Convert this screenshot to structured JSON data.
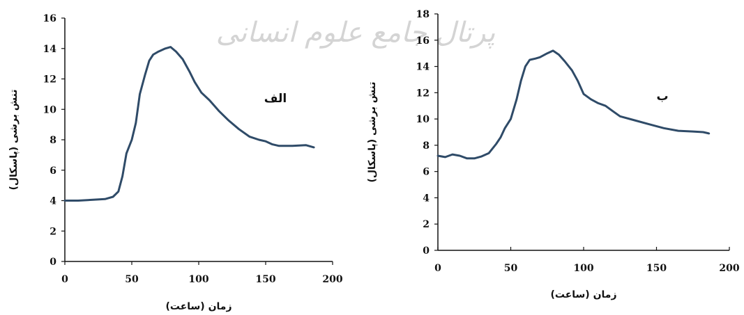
{
  "watermark": "پرتال جامع علوم انسانی",
  "chart_data": [
    {
      "type": "line",
      "panel_label": "الف",
      "xlabel": "زمان (ساعت)",
      "ylabel": "تنش برشی (پاسکال)",
      "xlim": [
        0,
        200
      ],
      "ylim": [
        0,
        16
      ],
      "x_ticks": [
        "0",
        "50",
        "100",
        "150",
        "200"
      ],
      "y_ticks": [
        "0",
        "2",
        "4",
        "6",
        "8",
        "10",
        "12",
        "14",
        "16"
      ],
      "color": "#2f4b68",
      "series": [
        {
          "points": [
            [
              0,
              4.0
            ],
            [
              10,
              4.0
            ],
            [
              20,
              4.05
            ],
            [
              30,
              4.1
            ],
            [
              36,
              4.25
            ],
            [
              40,
              4.6
            ],
            [
              43,
              5.6
            ],
            [
              46,
              7.1
            ],
            [
              50,
              8.0
            ],
            [
              53,
              9.1
            ],
            [
              56,
              11.0
            ],
            [
              60,
              12.3
            ],
            [
              63,
              13.2
            ],
            [
              66,
              13.6
            ],
            [
              70,
              13.8
            ],
            [
              75,
              14.0
            ],
            [
              79,
              14.1
            ],
            [
              83,
              13.8
            ],
            [
              88,
              13.3
            ],
            [
              93,
              12.5
            ],
            [
              97,
              11.8
            ],
            [
              102,
              11.1
            ],
            [
              108,
              10.6
            ],
            [
              115,
              9.9
            ],
            [
              122,
              9.3
            ],
            [
              130,
              8.7
            ],
            [
              138,
              8.2
            ],
            [
              145,
              8.0
            ],
            [
              150,
              7.9
            ],
            [
              155,
              7.7
            ],
            [
              160,
              7.6
            ],
            [
              170,
              7.6
            ],
            [
              180,
              7.65
            ],
            [
              186,
              7.5
            ]
          ]
        }
      ]
    },
    {
      "type": "line",
      "panel_label": "ب",
      "xlabel": "زمان (ساعت)",
      "ylabel": "تنش برشی (پاسکال)",
      "xlim": [
        0,
        200
      ],
      "ylim": [
        0,
        18
      ],
      "x_ticks": [
        "0",
        "50",
        "100",
        "150",
        "200"
      ],
      "y_ticks": [
        "0",
        "2",
        "4",
        "6",
        "8",
        "10",
        "12",
        "14",
        "16",
        "18"
      ],
      "color": "#2f4b68",
      "series": [
        {
          "points": [
            [
              0,
              7.2
            ],
            [
              5,
              7.1
            ],
            [
              10,
              7.3
            ],
            [
              15,
              7.2
            ],
            [
              20,
              7.0
            ],
            [
              25,
              7.0
            ],
            [
              30,
              7.15
            ],
            [
              35,
              7.4
            ],
            [
              40,
              8.1
            ],
            [
              43,
              8.6
            ],
            [
              46,
              9.3
            ],
            [
              50,
              10.0
            ],
            [
              54,
              11.5
            ],
            [
              57,
              12.9
            ],
            [
              60,
              14.0
            ],
            [
              63,
              14.5
            ],
            [
              67,
              14.6
            ],
            [
              70,
              14.7
            ],
            [
              75,
              15.0
            ],
            [
              79,
              15.2
            ],
            [
              83,
              14.9
            ],
            [
              87,
              14.4
            ],
            [
              92,
              13.7
            ],
            [
              96,
              12.9
            ],
            [
              100,
              11.9
            ],
            [
              105,
              11.5
            ],
            [
              110,
              11.2
            ],
            [
              115,
              11.0
            ],
            [
              120,
              10.6
            ],
            [
              125,
              10.2
            ],
            [
              135,
              9.9
            ],
            [
              145,
              9.6
            ],
            [
              155,
              9.3
            ],
            [
              165,
              9.1
            ],
            [
              175,
              9.05
            ],
            [
              182,
              9.0
            ],
            [
              186,
              8.9
            ]
          ]
        }
      ]
    }
  ]
}
